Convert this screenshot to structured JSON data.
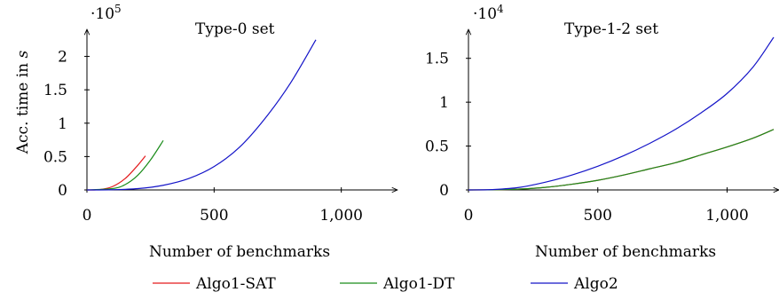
{
  "legend": [
    {
      "name": "Algo1-SAT",
      "color": "#e31a1c"
    },
    {
      "name": "Algo1-DT",
      "color": "#1a8c1a"
    },
    {
      "name": "Algo2",
      "color": "#1414c8"
    }
  ],
  "chart_data": [
    {
      "type": "line",
      "title": "Type-0 set",
      "xlabel": "Number of benchmarks",
      "ylabel": "Acc. time in s",
      "y_multiplier": "·10^5",
      "xlim": [
        0,
        1200
      ],
      "ylim": [
        0,
        2.3
      ],
      "xticks": [
        0,
        500,
        1000
      ],
      "xtick_labels": [
        "0",
        "500",
        "1,000"
      ],
      "yticks": [
        0,
        0.5,
        1,
        1.5,
        2
      ],
      "ytick_labels": [
        "0",
        "0.5",
        "1",
        "1.5",
        "2"
      ],
      "series": [
        {
          "name": "Algo1-SAT",
          "color": "#e31a1c",
          "x": [
            0,
            50,
            100,
            150,
            200,
            230
          ],
          "y": [
            0,
            0.005,
            0.05,
            0.17,
            0.37,
            0.51
          ]
        },
        {
          "name": "Algo1-DT",
          "color": "#1a8c1a",
          "x": [
            0,
            100,
            150,
            200,
            250,
            300
          ],
          "y": [
            0,
            0.02,
            0.08,
            0.22,
            0.45,
            0.74
          ]
        },
        {
          "name": "Algo2",
          "color": "#1414c8",
          "x": [
            0,
            100,
            200,
            300,
            400,
            500,
            600,
            700,
            800,
            900
          ],
          "y": [
            0,
            0.003,
            0.02,
            0.07,
            0.17,
            0.35,
            0.64,
            1.07,
            1.6,
            2.25
          ]
        }
      ]
    },
    {
      "type": "line",
      "title": "Type-1-2 set",
      "xlabel": "Number of benchmarks",
      "ylabel": "",
      "y_multiplier": "·10^4",
      "xlim": [
        0,
        1180
      ],
      "ylim": [
        0,
        1.75
      ],
      "xticks": [
        0,
        500,
        1000
      ],
      "xtick_labels": [
        "0",
        "500",
        "1,000"
      ],
      "yticks": [
        0,
        0.5,
        1,
        1.5
      ],
      "ytick_labels": [
        "0",
        "0.5",
        "1",
        "1.5"
      ],
      "series": [
        {
          "name": "Algo1-SAT",
          "color": "#e31a1c",
          "x": [
            0,
            100,
            200,
            300,
            400,
            500,
            600,
            700,
            800,
            900,
            1000,
            1100,
            1180
          ],
          "y": [
            0,
            0.002,
            0.01,
            0.03,
            0.065,
            0.11,
            0.17,
            0.24,
            0.31,
            0.4,
            0.49,
            0.59,
            0.69
          ]
        },
        {
          "name": "Algo1-DT",
          "color": "#1a8c1a",
          "x": [
            0,
            100,
            200,
            300,
            400,
            500,
            600,
            700,
            800,
            900,
            1000,
            1100,
            1180
          ],
          "y": [
            0,
            0.002,
            0.01,
            0.03,
            0.065,
            0.11,
            0.17,
            0.24,
            0.31,
            0.4,
            0.49,
            0.59,
            0.69
          ]
        },
        {
          "name": "Algo2",
          "color": "#1414c8",
          "x": [
            0,
            100,
            200,
            300,
            400,
            500,
            600,
            700,
            800,
            900,
            1000,
            1100,
            1180
          ],
          "y": [
            0,
            0.005,
            0.03,
            0.09,
            0.17,
            0.27,
            0.39,
            0.53,
            0.69,
            0.88,
            1.1,
            1.4,
            1.74
          ]
        }
      ]
    }
  ]
}
